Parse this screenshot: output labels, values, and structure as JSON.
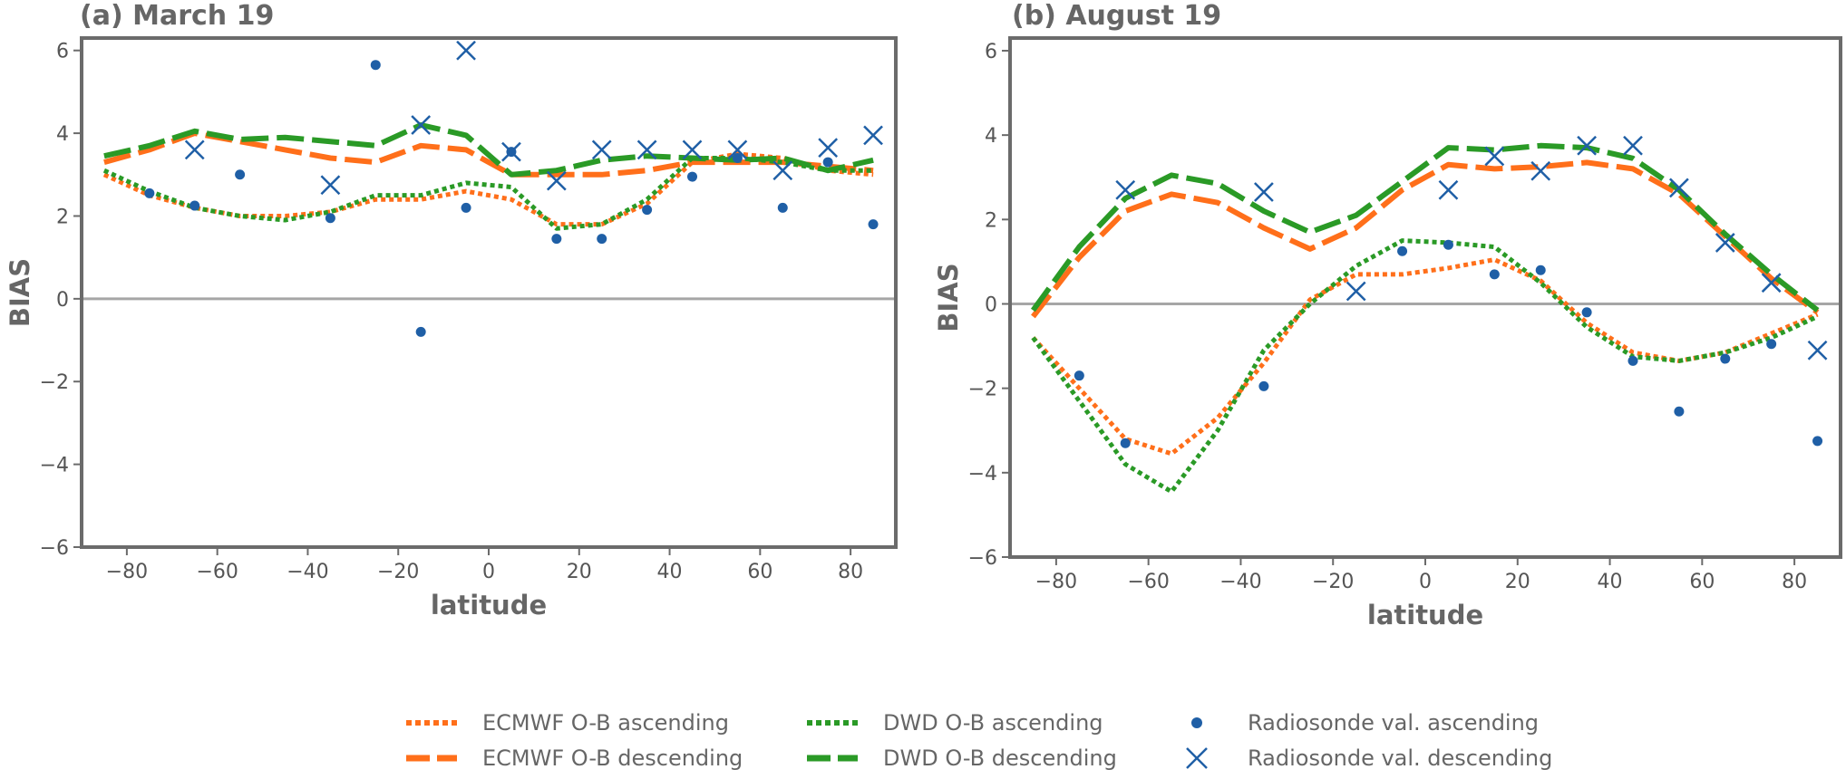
{
  "colors": {
    "ecmwf": "#ff6f1a",
    "dwd": "#2a9a26",
    "radiosonde": "#1f5fa6",
    "frame": "#6b6b6b",
    "zero_line": "#a6a6a6"
  },
  "legend": {
    "ecmwf_asc": "ECMWF O-B ascending",
    "ecmwf_desc": "ECMWF O-B descending",
    "dwd_asc": "DWD O-B ascending",
    "dwd_desc": "DWD O-B descending",
    "rs_asc": "Radiosonde val. ascending",
    "rs_desc": "Radiosonde val. descending"
  },
  "chart_data": [
    {
      "type": "line",
      "title": "(a) March 19",
      "xlabel": "latitude",
      "ylabel": "BIAS",
      "xlim": [
        -90,
        90
      ],
      "ylim": [
        -6,
        6.3
      ],
      "xticks": [
        -80,
        -60,
        -40,
        -20,
        0,
        20,
        40,
        60,
        80
      ],
      "yticks": [
        -6,
        -4,
        -2,
        0,
        2,
        4,
        6
      ],
      "x": [
        -85,
        -75,
        -65,
        -55,
        -45,
        -35,
        -25,
        -15,
        -5,
        5,
        15,
        25,
        35,
        45,
        55,
        65,
        75,
        85
      ],
      "series": [
        {
          "name": "ECMWF O-B ascending",
          "style": "dotted",
          "values": [
            3.0,
            2.5,
            2.2,
            2.0,
            2.0,
            2.1,
            2.4,
            2.4,
            2.6,
            2.4,
            1.8,
            1.8,
            2.3,
            3.3,
            3.5,
            3.4,
            3.1,
            3.0
          ]
        },
        {
          "name": "ECMWF O-B descending",
          "style": "dashed",
          "values": [
            3.3,
            3.6,
            4.0,
            3.8,
            3.6,
            3.4,
            3.3,
            3.7,
            3.6,
            3.0,
            3.0,
            3.0,
            3.1,
            3.3,
            3.3,
            3.3,
            3.2,
            3.1
          ]
        },
        {
          "name": "DWD O-B ascending",
          "style": "dotted",
          "values": [
            3.1,
            2.6,
            2.2,
            2.0,
            1.9,
            2.1,
            2.5,
            2.5,
            2.8,
            2.7,
            1.7,
            1.8,
            2.4,
            3.4,
            3.4,
            3.3,
            3.1,
            3.1
          ]
        },
        {
          "name": "DWD O-B descending",
          "style": "dashed",
          "values": [
            3.45,
            3.7,
            4.05,
            3.85,
            3.9,
            3.8,
            3.7,
            4.2,
            3.95,
            3.0,
            3.1,
            3.35,
            3.45,
            3.4,
            3.35,
            3.4,
            3.1,
            3.35
          ]
        },
        {
          "name": "Radiosonde val. ascending",
          "style": "dot",
          "x": [
            -75,
            -65,
            -55,
            -35,
            -25,
            -15,
            -5,
            5,
            15,
            25,
            35,
            45,
            55,
            65,
            75,
            85
          ],
          "values": [
            2.55,
            2.25,
            3.0,
            1.95,
            5.65,
            -0.8,
            2.2,
            3.55,
            1.45,
            1.45,
            2.15,
            2.95,
            3.4,
            2.2,
            3.3,
            1.8
          ]
        },
        {
          "name": "Radiosonde val. descending",
          "style": "x",
          "x": [
            -65,
            -35,
            -15,
            -5,
            5,
            15,
            25,
            35,
            45,
            55,
            65,
            75,
            85
          ],
          "values": [
            3.6,
            2.75,
            4.2,
            6.0,
            3.55,
            2.85,
            3.6,
            3.6,
            3.6,
            3.6,
            3.1,
            3.65,
            3.95
          ]
        }
      ]
    },
    {
      "type": "line",
      "title": "(b) August 19",
      "xlabel": "latitude",
      "ylabel": "BIAS",
      "xlim": [
        -90,
        90
      ],
      "ylim": [
        -6,
        6.3
      ],
      "xticks": [
        -80,
        -60,
        -40,
        -20,
        0,
        20,
        40,
        60,
        80
      ],
      "yticks": [
        -6,
        -4,
        -2,
        0,
        2,
        4,
        6
      ],
      "x": [
        -85,
        -75,
        -65,
        -55,
        -45,
        -35,
        -25,
        -15,
        -5,
        5,
        15,
        25,
        35,
        45,
        55,
        65,
        75,
        85
      ],
      "series": [
        {
          "name": "ECMWF O-B ascending",
          "style": "dotted",
          "values": [
            -0.8,
            -2.0,
            -3.2,
            -3.55,
            -2.7,
            -1.4,
            0.1,
            0.7,
            0.7,
            0.85,
            1.05,
            0.55,
            -0.45,
            -1.15,
            -1.35,
            -1.15,
            -0.7,
            -0.25
          ]
        },
        {
          "name": "ECMWF O-B descending",
          "style": "dashed",
          "values": [
            -0.3,
            1.1,
            2.2,
            2.6,
            2.4,
            1.8,
            1.3,
            1.8,
            2.7,
            3.3,
            3.2,
            3.25,
            3.35,
            3.2,
            2.6,
            1.6,
            0.6,
            -0.2
          ]
        },
        {
          "name": "DWD O-B ascending",
          "style": "dotted",
          "values": [
            -0.8,
            -2.3,
            -3.8,
            -4.45,
            -3.0,
            -1.1,
            0.0,
            0.9,
            1.5,
            1.45,
            1.35,
            0.5,
            -0.55,
            -1.25,
            -1.35,
            -1.15,
            -0.8,
            -0.3
          ]
        },
        {
          "name": "DWD O-B descending",
          "style": "dashed",
          "values": [
            -0.15,
            1.35,
            2.5,
            3.05,
            2.85,
            2.2,
            1.7,
            2.1,
            2.9,
            3.7,
            3.65,
            3.75,
            3.7,
            3.45,
            2.7,
            1.65,
            0.7,
            -0.15
          ]
        },
        {
          "name": "Radiosonde val. ascending",
          "style": "dot",
          "x": [
            -75,
            -65,
            -35,
            -5,
            5,
            15,
            25,
            35,
            45,
            55,
            65,
            75,
            85
          ],
          "values": [
            -1.7,
            -3.3,
            -1.95,
            1.25,
            1.4,
            0.7,
            0.8,
            -0.2,
            -1.35,
            -2.55,
            -1.3,
            -0.95,
            -3.25
          ]
        },
        {
          "name": "Radiosonde val. descending",
          "style": "x",
          "x": [
            -65,
            -35,
            -15,
            5,
            15,
            25,
            35,
            45,
            55,
            65,
            75,
            85
          ],
          "values": [
            2.7,
            2.65,
            0.3,
            2.7,
            3.5,
            3.15,
            3.75,
            3.75,
            2.75,
            1.45,
            0.5,
            -1.1
          ]
        }
      ]
    }
  ]
}
